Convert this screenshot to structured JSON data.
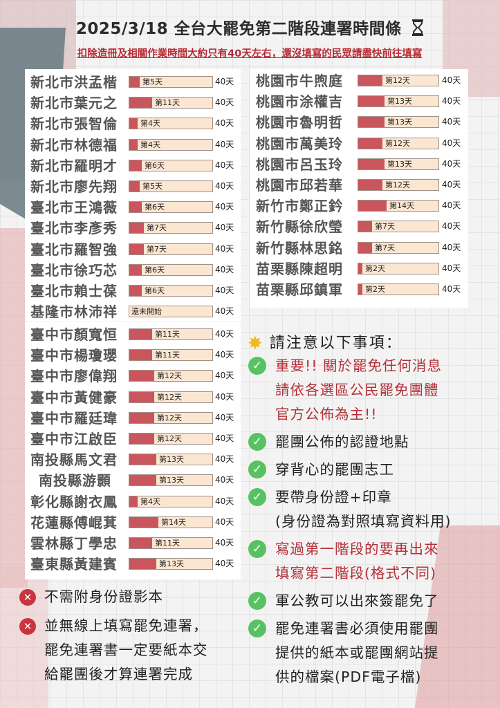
{
  "title": "2025/3/18 全台大罷免第二階段連署時間條",
  "title_icon": "hourglass-icon",
  "subtitle": "扣除造冊及相關作業時間大約只有40天左右，還沒填寫的民眾請盡快前往填寫",
  "total_label": "40天",
  "total_days": 40,
  "colors": {
    "fill": "#c9565c",
    "track": "#fbe6d2",
    "accent_red": "#b3313a",
    "check": "#58c262",
    "cross": "#c9343f"
  },
  "left_list": [
    {
      "name": "新北市洪孟楷",
      "day_label": "第5天",
      "days": 5
    },
    {
      "name": "新北市葉元之",
      "day_label": "第11天",
      "days": 11
    },
    {
      "name": "新北市張智倫",
      "day_label": "第4天",
      "days": 4
    },
    {
      "name": "新北市林德福",
      "day_label": "第4天",
      "days": 4
    },
    {
      "name": "新北市羅明才",
      "day_label": "第6天",
      "days": 6
    },
    {
      "name": "新北市廖先翔",
      "day_label": "第5天",
      "days": 5
    },
    {
      "name": "臺北市王鴻薇",
      "day_label": "第6天",
      "days": 6
    },
    {
      "name": "臺北市李彥秀",
      "day_label": "第7天",
      "days": 7
    },
    {
      "name": "臺北市羅智強",
      "day_label": "第7天",
      "days": 7
    },
    {
      "name": "臺北市徐巧芯",
      "day_label": "第6天",
      "days": 6
    },
    {
      "name": "臺北市賴士葆",
      "day_label": "第6天",
      "days": 6
    },
    {
      "name": "基隆市林沛祥",
      "day_label": "還未開始",
      "days": 0
    },
    {
      "name": "臺中市顏寬恒",
      "day_label": "第11天",
      "days": 11
    },
    {
      "name": "臺中市楊瓊瓔",
      "day_label": "第11天",
      "days": 11
    },
    {
      "name": "臺中市廖偉翔",
      "day_label": "第12天",
      "days": 12
    },
    {
      "name": "臺中市黃健豪",
      "day_label": "第12天",
      "days": 12
    },
    {
      "name": "臺中市羅廷瑋",
      "day_label": "第12天",
      "days": 12
    },
    {
      "name": "臺中市江啟臣",
      "day_label": "第12天",
      "days": 12
    },
    {
      "name": "南投縣馬文君",
      "day_label": "第13天",
      "days": 13
    },
    {
      "name": "南投縣游顥",
      "day_label": "第13天",
      "days": 13
    },
    {
      "name": "彰化縣謝衣鳳",
      "day_label": "第4天",
      "days": 4
    },
    {
      "name": "花蓮縣傅崐萁",
      "day_label": "第14天",
      "days": 14
    },
    {
      "name": "雲林縣丁學忠",
      "day_label": "第11天",
      "days": 11
    },
    {
      "name": "臺東縣黃建賓",
      "day_label": "第13天",
      "days": 13
    }
  ],
  "right_list": [
    {
      "name": "桃園市牛煦庭",
      "day_label": "第12天",
      "days": 12
    },
    {
      "name": "桃園市涂權吉",
      "day_label": "第13天",
      "days": 13
    },
    {
      "name": "桃園市魯明哲",
      "day_label": "第13天",
      "days": 13
    },
    {
      "name": "桃園市萬美玲",
      "day_label": "第12天",
      "days": 12
    },
    {
      "name": "桃園市呂玉玲",
      "day_label": "第13天",
      "days": 13
    },
    {
      "name": "桃園市邱若華",
      "day_label": "第12天",
      "days": 12
    },
    {
      "name": "新竹市鄭正鈐",
      "day_label": "第14天",
      "days": 14
    },
    {
      "name": "新竹縣徐欣瑩",
      "day_label": "第7天",
      "days": 7
    },
    {
      "name": "新竹縣林思銘",
      "day_label": "第7天",
      "days": 7
    },
    {
      "name": "苗栗縣陳超明",
      "day_label": "第2天",
      "days": 2
    },
    {
      "name": "苗栗縣邱鎮軍",
      "day_label": "第2天",
      "days": 2
    }
  ],
  "notes": {
    "heading": "請注意以下事項：",
    "heading_icon": "sparkle-star-icon",
    "items": [
      {
        "lines": [
          "重要!! 關於罷免任何消息",
          "請依各選區公民罷免團體",
          "官方公佈為主!!"
        ],
        "red": true,
        "icon": "check-icon"
      },
      {
        "lines": [
          "罷團公佈的認證地點"
        ],
        "red": false,
        "icon": "check-icon"
      },
      {
        "lines": [
          "穿背心的罷團志工"
        ],
        "red": false,
        "icon": "check-icon"
      },
      {
        "lines": [
          "要帶身份證+印章",
          "(身份證為對照填寫資料用)"
        ],
        "red": false,
        "icon": "check-icon"
      },
      {
        "lines": [
          "寫過第一階段的要再出來",
          "填寫第二階段(格式不同)"
        ],
        "red": true,
        "icon": "check-icon"
      },
      {
        "lines": [
          "軍公教可以出來簽罷免了"
        ],
        "red": false,
        "icon": "check-icon"
      },
      {
        "lines": [
          "罷免連署書必須使用罷團",
          "提供的紙本或罷團網站提",
          "供的檔案(PDF電子檔)"
        ],
        "red": false,
        "icon": "check-icon"
      }
    ]
  },
  "donts": [
    {
      "lines": [
        "不需附身份證影本"
      ],
      "icon": "cross-icon"
    },
    {
      "lines": [
        "並無線上填寫罷免連署，",
        "罷免連署書一定要紙本交",
        "給罷團後才算連署完成"
      ],
      "icon": "cross-icon"
    }
  ]
}
